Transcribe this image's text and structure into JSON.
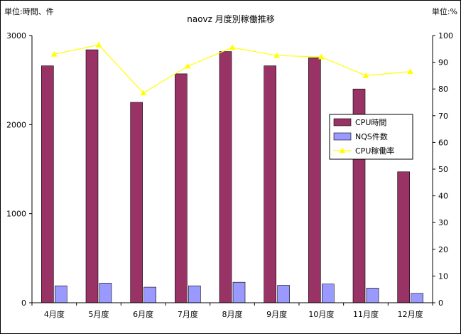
{
  "colors": {
    "cpu_bar": "#993366",
    "nqs_bar": "#9999ff",
    "rate_line": "#ffff00",
    "axis": "#000000",
    "plot_bg": "#ffffff"
  },
  "chart_data": {
    "type": "bar",
    "title": "naovz 月度別稼働推移",
    "left_unit": "単位:時間、件",
    "right_unit": "単位:%",
    "categories": [
      "4月度",
      "5月度",
      "6月度",
      "7月度",
      "8月度",
      "9月度",
      "10月度",
      "11月度",
      "12月度"
    ],
    "series": [
      {
        "name": "CPU時間",
        "type": "bar",
        "axis": "left",
        "values": [
          2660,
          2840,
          2250,
          2570,
          2820,
          2660,
          2750,
          2400,
          1470
        ]
      },
      {
        "name": "NQS件数",
        "type": "bar",
        "axis": "left",
        "values": [
          190,
          220,
          175,
          190,
          230,
          195,
          210,
          165,
          105
        ]
      },
      {
        "name": "CPU稼働率",
        "type": "line",
        "axis": "right",
        "values": [
          93,
          96.5,
          78.5,
          88.5,
          95.5,
          92.5,
          92,
          85,
          86.5
        ]
      }
    ],
    "ylim_left": [
      0,
      3000
    ],
    "yticks_left": [
      "0",
      "1000",
      "2000",
      "3000"
    ],
    "ylim_right": [
      0,
      100
    ],
    "yticks_right": [
      "0",
      "10",
      "20",
      "30",
      "40",
      "50",
      "60",
      "70",
      "80",
      "90",
      "100"
    ],
    "legend_position": "right",
    "grid": false
  }
}
